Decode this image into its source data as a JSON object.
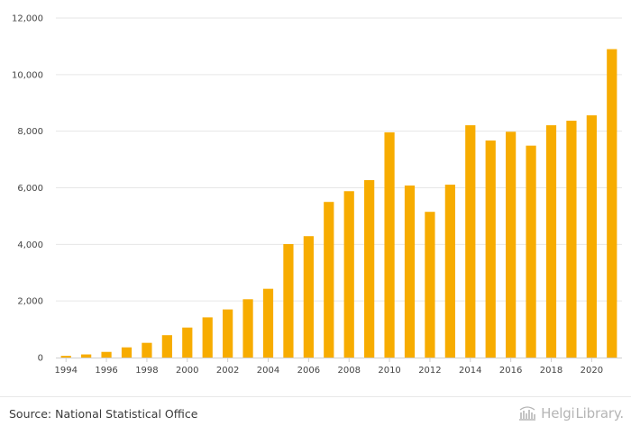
{
  "chart_data": {
    "type": "bar",
    "title": "",
    "xlabel": "",
    "ylabel": "",
    "x": [
      1994,
      1995,
      1996,
      1997,
      1998,
      1999,
      2000,
      2001,
      2002,
      2003,
      2004,
      2005,
      2006,
      2007,
      2008,
      2009,
      2010,
      2011,
      2012,
      2013,
      2014,
      2015,
      2016,
      2017,
      2018,
      2019,
      2020,
      2021
    ],
    "values": [
      60,
      110,
      200,
      360,
      520,
      790,
      1060,
      1420,
      1700,
      2060,
      2430,
      4010,
      4290,
      5500,
      5880,
      6270,
      7960,
      6080,
      5150,
      6110,
      8210,
      7670,
      7980,
      7490,
      8210,
      8370,
      8560,
      10900
    ],
    "x_tick_labels": [
      "1994",
      "1996",
      "1998",
      "2000",
      "2002",
      "2004",
      "2006",
      "2008",
      "2010",
      "2012",
      "2014",
      "2016",
      "2018",
      "2020"
    ],
    "y_tick_labels": [
      "0",
      "2,000",
      "4,000",
      "6,000",
      "8,000",
      "10,000",
      "12,000"
    ],
    "y_ticks": [
      0,
      2000,
      4000,
      6000,
      8000,
      10000,
      12000
    ],
    "ylim": [
      0,
      12000
    ],
    "grid": true,
    "bar_color": "#f7ac00",
    "grid_color": "#e6e6e6"
  },
  "footer": {
    "source": "Source: National Statistical Office",
    "brand_part1": "Helgi",
    "brand_part2": "Library."
  }
}
